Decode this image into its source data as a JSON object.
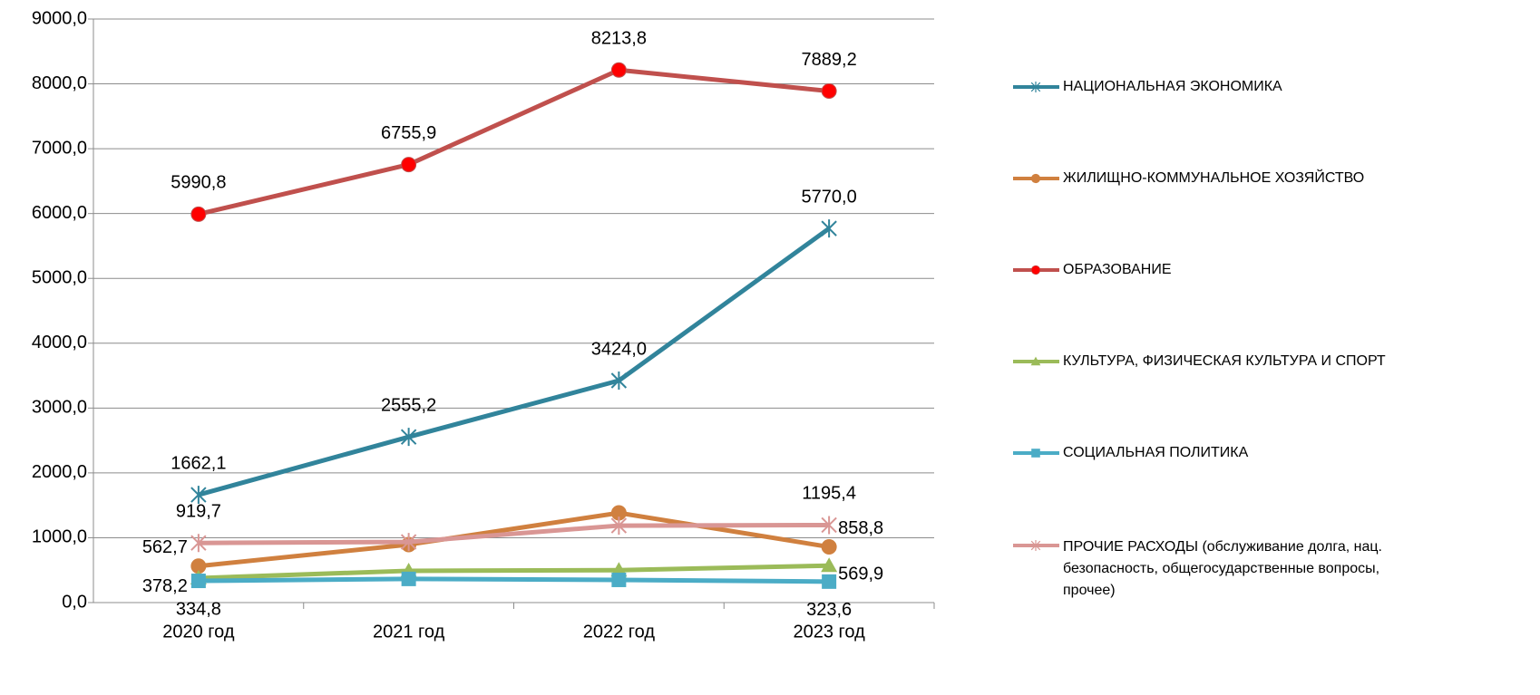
{
  "chart_data": {
    "type": "line",
    "categories": [
      "2020 год",
      "2021 год",
      "2022 год",
      "2023 год"
    ],
    "ylim": [
      0,
      9000
    ],
    "yticks": [
      {
        "value": 0,
        "label": "0,0"
      },
      {
        "value": 1000,
        "label": "1000,0"
      },
      {
        "value": 2000,
        "label": "2000,0"
      },
      {
        "value": 3000,
        "label": "3000,0"
      },
      {
        "value": 4000,
        "label": "4000,0"
      },
      {
        "value": 5000,
        "label": "5000,0"
      },
      {
        "value": 6000,
        "label": "6000,0"
      },
      {
        "value": 7000,
        "label": "7000,0"
      },
      {
        "value": 8000,
        "label": "8000,0"
      },
      {
        "value": 9000,
        "label": "9000,0"
      }
    ],
    "grid": true,
    "legend": "right",
    "series": [
      {
        "name": "НАЦИОНАЛЬНАЯ ЭКОНОМИКА",
        "color": "#31849b",
        "marker": "star",
        "values": [
          1662.1,
          2555.2,
          3424.0,
          5770.0
        ],
        "value_labels": [
          "1662,1",
          "2555,2",
          "3424,0",
          "5770,0"
        ]
      },
      {
        "name": "ЖИЛИЩНО-КОММУНАЛЬНОЕ ХОЗЯЙСТВО",
        "color": "#d0803f",
        "marker": "circle",
        "values": [
          562.7,
          895,
          1383,
          858.8
        ],
        "value_labels": [
          "562,7",
          null,
          null,
          "858,8"
        ]
      },
      {
        "name": "ОБРАЗОВАНИЕ",
        "color": "#c0504d",
        "marker": "circle",
        "marker_color": "#ff0000",
        "values": [
          5990.8,
          6755.9,
          8213.8,
          7889.2
        ],
        "value_labels": [
          "5990,8",
          "6755,9",
          "8213,8",
          "7889,2"
        ]
      },
      {
        "name": "КУЛЬТУРА, ФИЗИЧЕСКАЯ КУЛЬТУРА И СПОРТ",
        "color": "#9bbb59",
        "marker": "triangle",
        "values": [
          378.2,
          490,
          500,
          569.9
        ],
        "value_labels": [
          "378,2",
          null,
          null,
          "569,9"
        ]
      },
      {
        "name": "СОЦИАЛЬНАЯ ПОЛИТИКА",
        "color": "#4bacc6",
        "marker": "square",
        "values": [
          334.8,
          365,
          350,
          323.6
        ],
        "value_labels": [
          "334,8",
          null,
          null,
          "323,6"
        ]
      },
      {
        "name": "ПРОЧИЕ РАСХОДЫ (обслуживание долга, нац. безопасность, общегосударственные вопросы, прочее)",
        "color": "#d99694",
        "marker": "star",
        "values": [
          919.7,
          935,
          1187,
          1195.4
        ],
        "value_labels": [
          "919,7",
          null,
          null,
          "1195,4"
        ]
      }
    ]
  }
}
